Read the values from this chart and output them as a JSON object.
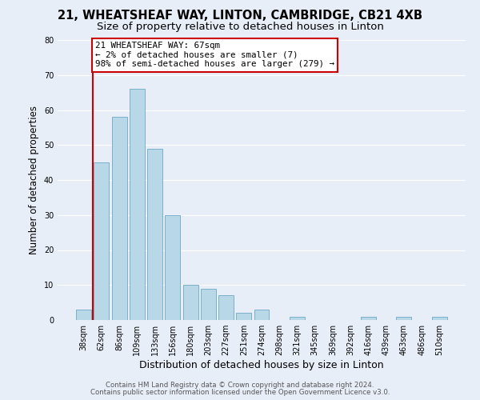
{
  "title": "21, WHEATSHEAF WAY, LINTON, CAMBRIDGE, CB21 4XB",
  "subtitle": "Size of property relative to detached houses in Linton",
  "xlabel": "Distribution of detached houses by size in Linton",
  "ylabel": "Number of detached properties",
  "bar_labels": [
    "38sqm",
    "62sqm",
    "86sqm",
    "109sqm",
    "133sqm",
    "156sqm",
    "180sqm",
    "203sqm",
    "227sqm",
    "251sqm",
    "274sqm",
    "298sqm",
    "321sqm",
    "345sqm",
    "369sqm",
    "392sqm",
    "416sqm",
    "439sqm",
    "463sqm",
    "486sqm",
    "510sqm"
  ],
  "bar_values": [
    3,
    45,
    58,
    66,
    49,
    30,
    10,
    9,
    7,
    2,
    3,
    0,
    1,
    0,
    0,
    0,
    1,
    0,
    1,
    0,
    1
  ],
  "highlight_index": 1,
  "bar_color": "#b8d8e8",
  "bar_edge_color": "#7ab0cc",
  "highlight_line_color": "#cc0000",
  "ylim": [
    0,
    80
  ],
  "yticks": [
    0,
    10,
    20,
    30,
    40,
    50,
    60,
    70,
    80
  ],
  "annotation_text": "21 WHEATSHEAF WAY: 67sqm\n← 2% of detached houses are smaller (7)\n98% of semi-detached houses are larger (279) →",
  "annotation_box_color": "#ffffff",
  "annotation_box_edge": "#cc0000",
  "footer1": "Contains HM Land Registry data © Crown copyright and database right 2024.",
  "footer2": "Contains public sector information licensed under the Open Government Licence v3.0.",
  "background_color": "#e8eef8",
  "grid_color": "#ffffff",
  "title_fontsize": 10.5,
  "subtitle_fontsize": 9.5,
  "tick_fontsize": 7,
  "ylabel_fontsize": 8.5,
  "xlabel_fontsize": 9,
  "footer_fontsize": 6.2,
  "annotation_fontsize": 7.8
}
